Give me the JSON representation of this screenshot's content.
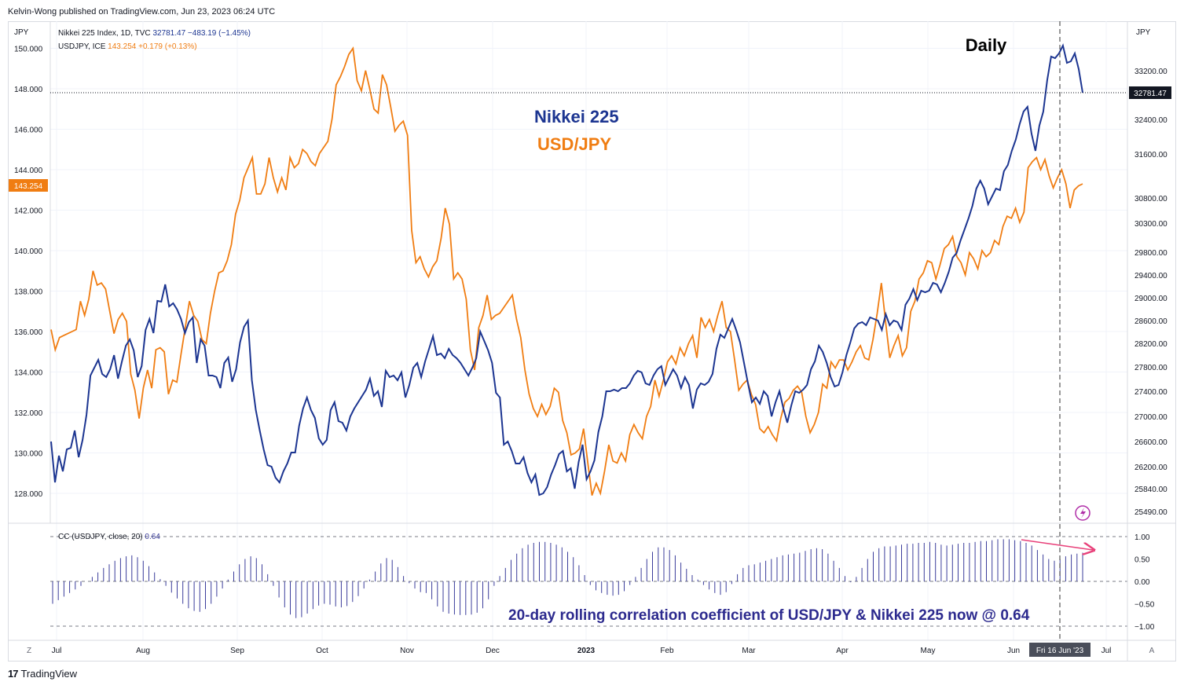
{
  "header": {
    "publisher": "Kelvin-Wong published on TradingView.com, Jun 23, 2023 06:24 UTC"
  },
  "footer": {
    "brand": "TradingView"
  },
  "colors": {
    "nikkei": "#1c3591",
    "usdjpy": "#f07d12",
    "corr": "#3b3d9b",
    "grid": "#f0f3fa",
    "axis_text": "#131722",
    "arrow": "#e8417a"
  },
  "chart_data": [
    {
      "type": "line",
      "title": "Daily",
      "annotation_nikkei": "Nikkei 225",
      "annotation_usdjpy": "USD/JPY",
      "left_axis_unit": "JPY",
      "right_axis_unit": "JPY",
      "legend": {
        "nikkei": {
          "name": "Nikkei 225 Index, 1D, TVC",
          "last": "32781.47",
          "change": "−483.19 (−1.45%)"
        },
        "usdjpy": {
          "name": "USDJPY, ICE",
          "last": "143.254",
          "change": "+0.179 (+0.13%)"
        }
      },
      "left_ticks": [
        "150.000",
        "148.000",
        "146.000",
        "144.000",
        "142.000",
        "140.000",
        "138.000",
        "136.000",
        "134.000",
        "132.000",
        "130.000",
        "128.000"
      ],
      "right_ticks": [
        "33200.00",
        "32400.00",
        "31600.00",
        "30800.00",
        "30300.00",
        "29800.00",
        "29400.00",
        "29000.00",
        "28600.00",
        "28200.00",
        "27800.00",
        "27400.00",
        "27000.00",
        "26600.00",
        "26200.00",
        "25840.00",
        "25490.00"
      ],
      "usdjpy_last_label": "143.254",
      "nikkei_last_label": "32781.47",
      "x_ticks": [
        "Jul",
        "Aug",
        "Sep",
        "Oct",
        "Nov",
        "Dec",
        "2023",
        "Feb",
        "Mar",
        "Apr",
        "May",
        "Jun",
        "Jul"
      ],
      "crosshair_label": "Fri 16 Jun '23",
      "usdjpy_series": [
        136.1,
        135.1,
        135.7,
        135.8,
        135.9,
        136.0,
        136.1,
        137.5,
        136.8,
        137.6,
        139.0,
        138.3,
        138.4,
        138.1,
        137.0,
        135.9,
        136.6,
        136.9,
        136.5,
        133.9,
        133.1,
        131.7,
        133.2,
        134.1,
        133.2,
        135.1,
        135.2,
        135.0,
        132.9,
        133.6,
        133.5,
        134.9,
        136.2,
        137.5,
        136.8,
        136.5,
        135.6,
        135.4,
        136.9,
        138.0,
        138.9,
        139.0,
        139.5,
        140.3,
        141.8,
        142.5,
        143.6,
        144.1,
        144.6,
        142.8,
        142.8,
        143.3,
        144.6,
        143.6,
        142.9,
        143.6,
        143.0,
        144.6,
        144.1,
        144.3,
        145.0,
        144.8,
        144.4,
        144.2,
        144.8,
        145.1,
        145.4,
        146.5,
        148.2,
        148.6,
        149.1,
        149.7,
        150.0,
        148.4,
        147.9,
        148.9,
        148.0,
        147.0,
        146.8,
        148.7,
        148.2,
        147.1,
        145.9,
        146.2,
        146.4,
        145.7,
        141.0,
        139.4,
        139.7,
        139.1,
        138.7,
        139.2,
        139.5,
        140.6,
        142.1,
        141.3,
        138.6,
        138.9,
        138.6,
        137.6,
        135.1,
        134.1,
        136.2,
        136.8,
        137.8,
        136.6,
        136.8,
        136.9,
        137.2,
        137.5,
        137.8,
        136.6,
        135.7,
        134.1,
        132.9,
        132.2,
        131.8,
        132.4,
        131.9,
        132.3,
        133.2,
        133.0,
        131.6,
        131.0,
        129.9,
        130.0,
        130.2,
        131.2,
        129.5,
        127.9,
        128.5,
        128.0,
        129.1,
        130.4,
        129.6,
        129.5,
        130.0,
        129.6,
        130.9,
        131.4,
        131.0,
        130.7,
        131.8,
        132.3,
        133.6,
        132.8,
        133.6,
        134.5,
        134.8,
        134.4,
        135.2,
        134.8,
        135.4,
        135.8,
        134.7,
        136.7,
        136.2,
        136.6,
        136.0,
        136.8,
        137.5,
        136.2,
        136.0,
        134.6,
        133.1,
        133.4,
        133.6,
        132.9,
        132.4,
        131.2,
        131.0,
        131.3,
        130.9,
        130.6,
        131.7,
        132.5,
        132.7,
        133.1,
        133.3,
        133.0,
        131.8,
        131.0,
        131.4,
        132.0,
        133.4,
        133.2,
        134.5,
        134.2,
        134.6,
        134.6,
        134.1,
        134.5,
        135.0,
        135.3,
        134.7,
        134.6,
        135.6,
        136.9,
        138.4,
        136.5,
        134.7,
        135.3,
        135.8,
        134.8,
        135.2,
        137.0,
        137.5,
        138.6,
        138.9,
        139.5,
        139.4,
        138.6,
        139.3,
        140.1,
        140.3,
        140.7,
        139.7,
        139.4,
        138.8,
        139.9,
        139.6,
        139.1,
        140.0,
        139.7,
        139.9,
        140.5,
        140.3,
        141.2,
        141.7,
        141.6,
        142.1,
        141.4,
        141.9,
        144.1,
        144.4,
        144.6,
        144.0,
        144.5,
        143.7,
        143.1,
        143.6,
        144.0,
        143.3,
        142.1,
        143.0,
        143.2,
        143.3
      ]
    },
    {
      "type": "bar",
      "title": "CC (USDJPY, close, 20)",
      "last_value": "0.64",
      "annotation": "20-day rolling correlation coefficient of USD/JPY & Nikkei 225 now @ 0.64",
      "y_ticks": [
        "1.00",
        "0.50",
        "0.00",
        "−0.50",
        "−1.00"
      ],
      "ylim": [
        -1.0,
        1.0
      ],
      "values": [
        -0.5,
        -0.42,
        -0.34,
        -0.26,
        -0.18,
        -0.1,
        0.0,
        0.1,
        0.2,
        0.3,
        0.38,
        0.46,
        0.52,
        0.56,
        0.58,
        0.54,
        0.46,
        0.34,
        0.2,
        0.05,
        -0.1,
        -0.25,
        -0.38,
        -0.5,
        -0.6,
        -0.66,
        -0.68,
        -0.62,
        -0.5,
        -0.34,
        -0.16,
        0.04,
        0.22,
        0.38,
        0.5,
        0.56,
        0.52,
        0.38,
        0.16,
        -0.1,
        -0.36,
        -0.58,
        -0.74,
        -0.82,
        -0.8,
        -0.72,
        -0.62,
        -0.54,
        -0.5,
        -0.52,
        -0.56,
        -0.58,
        -0.55,
        -0.46,
        -0.33,
        -0.16,
        0.04,
        0.22,
        0.4,
        0.52,
        0.48,
        0.32,
        0.12,
        -0.04,
        -0.16,
        -0.24,
        -0.26,
        -0.4,
        -0.56,
        -0.68,
        -0.72,
        -0.74,
        -0.75,
        -0.75,
        -0.74,
        -0.7,
        -0.6,
        -0.4,
        -0.1,
        0.12,
        0.3,
        0.48,
        0.62,
        0.74,
        0.82,
        0.86,
        0.88,
        0.88,
        0.86,
        0.82,
        0.76,
        0.66,
        0.54,
        0.36,
        0.14,
        -0.08,
        -0.2,
        -0.26,
        -0.3,
        -0.32,
        -0.3,
        -0.22,
        -0.08,
        0.1,
        0.3,
        0.5,
        0.66,
        0.76,
        0.76,
        0.7,
        0.58,
        0.42,
        0.28,
        0.14,
        0.04,
        -0.08,
        -0.18,
        -0.26,
        -0.3,
        -0.24,
        -0.06,
        0.16,
        0.3,
        0.36,
        0.38,
        0.42,
        0.46,
        0.5,
        0.54,
        0.58,
        0.6,
        0.62,
        0.64,
        0.68,
        0.72,
        0.74,
        0.72,
        0.62,
        0.46,
        0.3,
        0.12,
        -0.02,
        0.1,
        0.3,
        0.5,
        0.66,
        0.74,
        0.78,
        0.78,
        0.8,
        0.82,
        0.84,
        0.84,
        0.86,
        0.86,
        0.88,
        0.86,
        0.82,
        0.8,
        0.82,
        0.84,
        0.86,
        0.86,
        0.88,
        0.9,
        0.9,
        0.92,
        0.94,
        0.94,
        0.94,
        0.92,
        0.9,
        0.86,
        0.8,
        0.7,
        0.6,
        0.5,
        0.46,
        0.5,
        0.56,
        0.6,
        0.62,
        0.64
      ]
    }
  ],
  "toolbar": {
    "z_button": "Z",
    "a_button": "A"
  }
}
